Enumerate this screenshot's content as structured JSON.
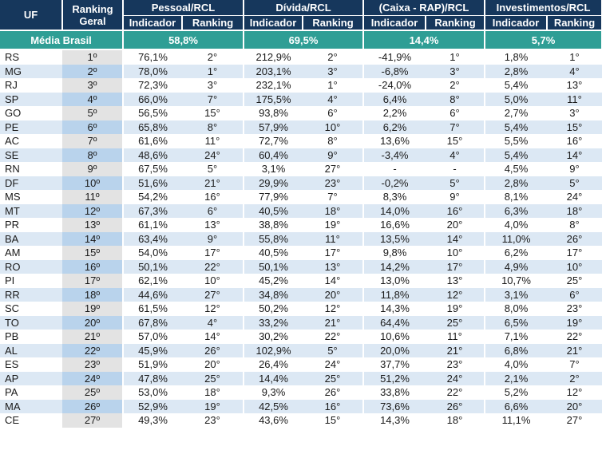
{
  "headers": {
    "uf": "UF",
    "ranking_geral": [
      "Ranking",
      "Geral"
    ],
    "groups": [
      "Pessoal/RCL",
      "Dívida/RCL",
      "(Caixa - RAP)/RCL",
      "Investimentos/RCL"
    ],
    "indicador": "Indicador",
    "ranking": "Ranking"
  },
  "average": {
    "label": "Média Brasil",
    "values": [
      "58,8%",
      "69,5%",
      "14,4%",
      "5,7%"
    ]
  },
  "rows": [
    {
      "uf": "RS",
      "geral": "1º",
      "vals": [
        "76,1%",
        "2°",
        "212,9%",
        "2°",
        "-41,9%",
        "1°",
        "1,8%",
        "1°"
      ]
    },
    {
      "uf": "MG",
      "geral": "2º",
      "vals": [
        "78,0%",
        "1°",
        "203,1%",
        "3°",
        "-6,8%",
        "3°",
        "2,8%",
        "4°"
      ]
    },
    {
      "uf": "RJ",
      "geral": "3º",
      "vals": [
        "72,3%",
        "3°",
        "232,1%",
        "1°",
        "-24,0%",
        "2°",
        "5,4%",
        "13°"
      ]
    },
    {
      "uf": "SP",
      "geral": "4º",
      "vals": [
        "66,0%",
        "7°",
        "175,5%",
        "4°",
        "6,4%",
        "8°",
        "5,0%",
        "11°"
      ]
    },
    {
      "uf": "GO",
      "geral": "5º",
      "vals": [
        "56,5%",
        "15°",
        "93,8%",
        "6°",
        "2,2%",
        "6°",
        "2,7%",
        "3°"
      ]
    },
    {
      "uf": "PE",
      "geral": "6º",
      "vals": [
        "65,8%",
        "8°",
        "57,9%",
        "10°",
        "6,2%",
        "7°",
        "5,4%",
        "15°"
      ]
    },
    {
      "uf": "AC",
      "geral": "7º",
      "vals": [
        "61,6%",
        "11°",
        "72,7%",
        "8°",
        "13,6%",
        "15°",
        "5,5%",
        "16°"
      ]
    },
    {
      "uf": "SE",
      "geral": "8º",
      "vals": [
        "48,6%",
        "24°",
        "60,4%",
        "9°",
        "-3,4%",
        "4°",
        "5,4%",
        "14°"
      ]
    },
    {
      "uf": "RN",
      "geral": "9º",
      "vals": [
        "67,5%",
        "5°",
        "3,1%",
        "27°",
        "-",
        "-",
        "4,5%",
        "9°"
      ]
    },
    {
      "uf": "DF",
      "geral": "10º",
      "vals": [
        "51,6%",
        "21°",
        "29,9%",
        "23°",
        "-0,2%",
        "5°",
        "2,8%",
        "5°"
      ]
    },
    {
      "uf": "MS",
      "geral": "11º",
      "vals": [
        "54,2%",
        "16°",
        "77,9%",
        "7°",
        "8,3%",
        "9°",
        "8,1%",
        "24°"
      ]
    },
    {
      "uf": "MT",
      "geral": "12º",
      "vals": [
        "67,3%",
        "6°",
        "40,5%",
        "18°",
        "14,0%",
        "16°",
        "6,3%",
        "18°"
      ]
    },
    {
      "uf": "PR",
      "geral": "13º",
      "vals": [
        "61,1%",
        "13°",
        "38,8%",
        "19°",
        "16,6%",
        "20°",
        "4,0%",
        "8°"
      ]
    },
    {
      "uf": "BA",
      "geral": "14º",
      "vals": [
        "63,4%",
        "9°",
        "55,8%",
        "11°",
        "13,5%",
        "14°",
        "11,0%",
        "26°"
      ]
    },
    {
      "uf": "AM",
      "geral": "15º",
      "vals": [
        "54,0%",
        "17°",
        "40,5%",
        "17°",
        "9,8%",
        "10°",
        "6,2%",
        "17°"
      ]
    },
    {
      "uf": "RO",
      "geral": "16º",
      "vals": [
        "50,1%",
        "22°",
        "50,1%",
        "13°",
        "14,2%",
        "17°",
        "4,9%",
        "10°"
      ]
    },
    {
      "uf": "PI",
      "geral": "17º",
      "vals": [
        "62,1%",
        "10°",
        "45,2%",
        "14°",
        "13,0%",
        "13°",
        "10,7%",
        "25°"
      ]
    },
    {
      "uf": "RR",
      "geral": "18º",
      "vals": [
        "44,6%",
        "27°",
        "34,8%",
        "20°",
        "11,8%",
        "12°",
        "3,1%",
        "6°"
      ]
    },
    {
      "uf": "SC",
      "geral": "19º",
      "vals": [
        "61,5%",
        "12°",
        "50,2%",
        "12°",
        "14,3%",
        "19°",
        "8,0%",
        "23°"
      ]
    },
    {
      "uf": "TO",
      "geral": "20º",
      "vals": [
        "67,8%",
        "4°",
        "33,2%",
        "21°",
        "64,4%",
        "25°",
        "6,5%",
        "19°"
      ]
    },
    {
      "uf": "PB",
      "geral": "21º",
      "vals": [
        "57,0%",
        "14°",
        "30,2%",
        "22°",
        "10,6%",
        "11°",
        "7,1%",
        "22°"
      ]
    },
    {
      "uf": "AL",
      "geral": "22º",
      "vals": [
        "45,9%",
        "26°",
        "102,9%",
        "5°",
        "20,0%",
        "21°",
        "6,8%",
        "21°"
      ]
    },
    {
      "uf": "ES",
      "geral": "23º",
      "vals": [
        "51,9%",
        "20°",
        "26,4%",
        "24°",
        "37,7%",
        "23°",
        "4,0%",
        "7°"
      ]
    },
    {
      "uf": "AP",
      "geral": "24º",
      "vals": [
        "47,8%",
        "25°",
        "14,4%",
        "25°",
        "51,2%",
        "24°",
        "2,1%",
        "2°"
      ]
    },
    {
      "uf": "PA",
      "geral": "25º",
      "vals": [
        "53,0%",
        "18°",
        "9,3%",
        "26°",
        "33,8%",
        "22°",
        "5,2%",
        "12°"
      ]
    },
    {
      "uf": "MA",
      "geral": "26º",
      "vals": [
        "52,9%",
        "19°",
        "42,5%",
        "16°",
        "73,6%",
        "26°",
        "6,6%",
        "20°"
      ]
    },
    {
      "uf": "CE",
      "geral": "27º",
      "vals": [
        "49,3%",
        "23°",
        "43,6%",
        "15°",
        "14,3%",
        "18°",
        "11,1%",
        "27°"
      ]
    }
  ]
}
